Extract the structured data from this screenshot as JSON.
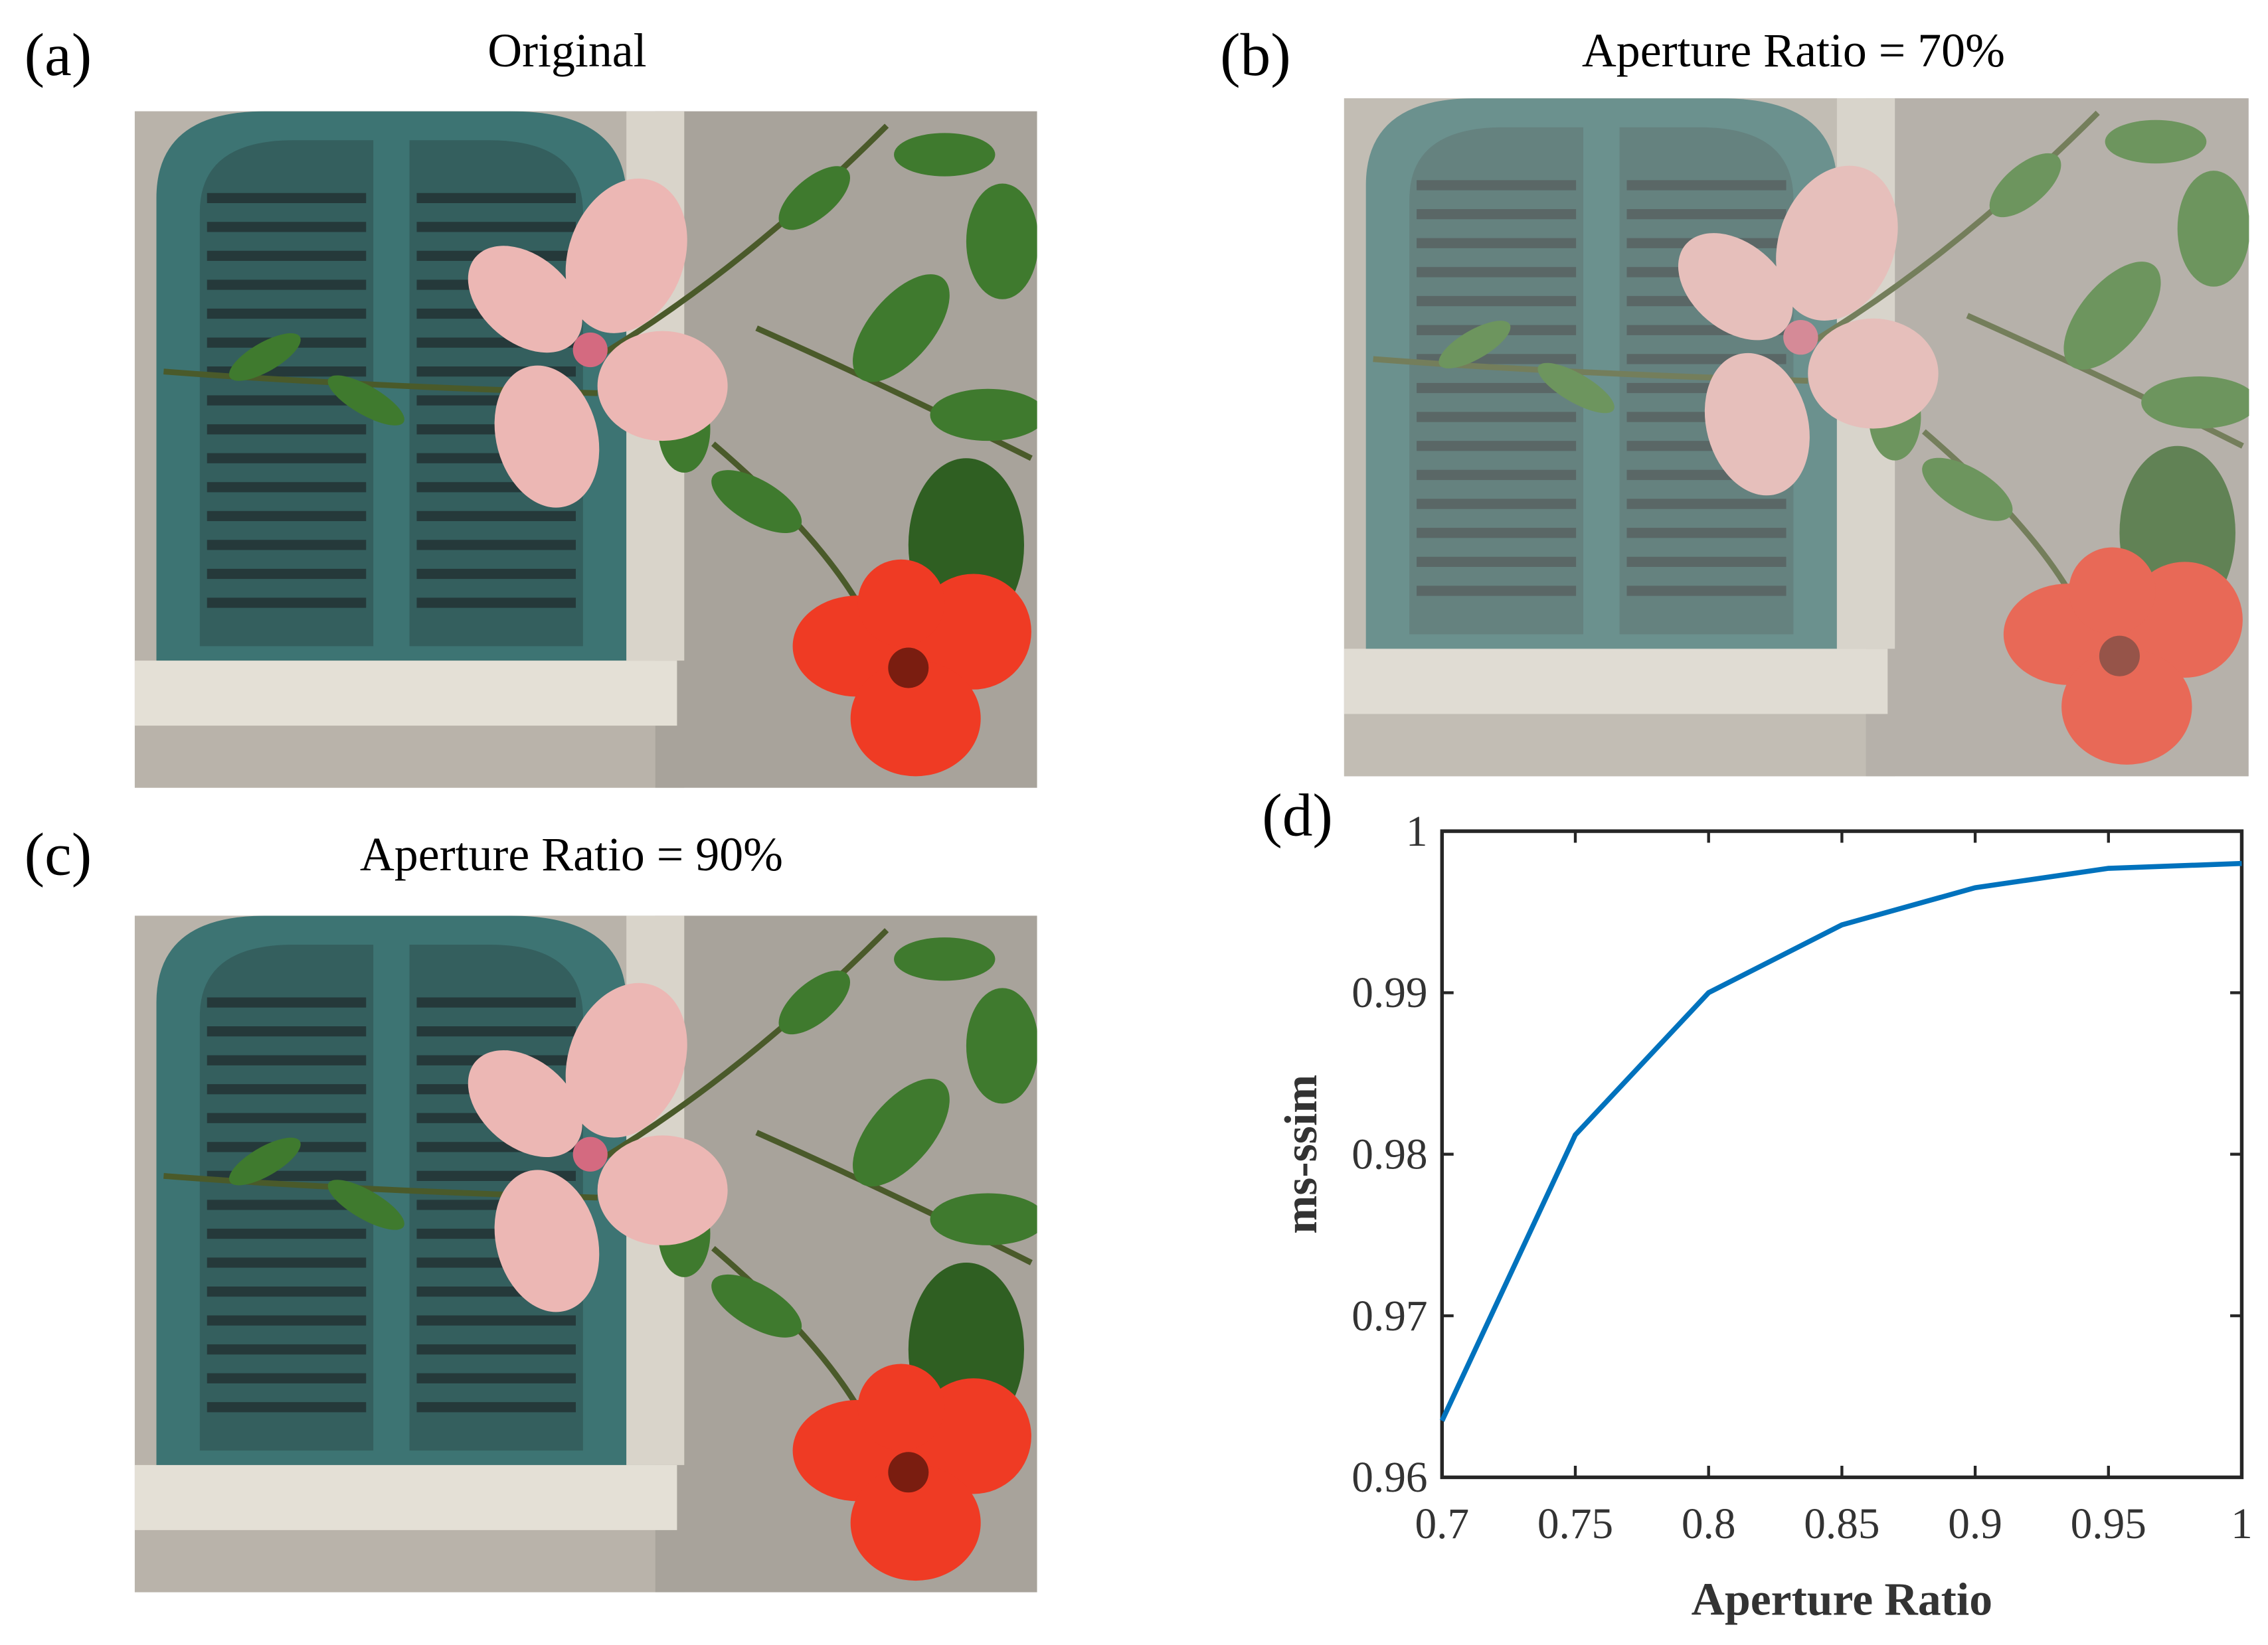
{
  "panels": [
    {
      "label": "(a)",
      "title": "Original"
    },
    {
      "label": "(b)",
      "title": "Aperture Ratio = 70%"
    },
    {
      "label": "(c)",
      "title": "Aperture Ratio = 90%"
    },
    {
      "label": "(d)"
    }
  ],
  "chart_data": {
    "type": "line",
    "xlabel": "Aperture Ratio",
    "ylabel": "ms-ssim",
    "x": [
      0.7,
      0.75,
      0.8,
      0.85,
      0.9,
      0.95,
      1
    ],
    "values": [
      0.9635,
      0.9812,
      0.99,
      0.9942,
      0.9965,
      0.9977,
      0.998
    ],
    "color": "#0072bd",
    "xlim": [
      0.7,
      1
    ],
    "ylim": [
      0.96,
      1
    ],
    "xticks": [
      0.7,
      0.75,
      0.8,
      0.85,
      0.9,
      0.95,
      1
    ],
    "yticks": [
      0.96,
      0.97,
      0.98,
      0.99,
      1
    ]
  }
}
